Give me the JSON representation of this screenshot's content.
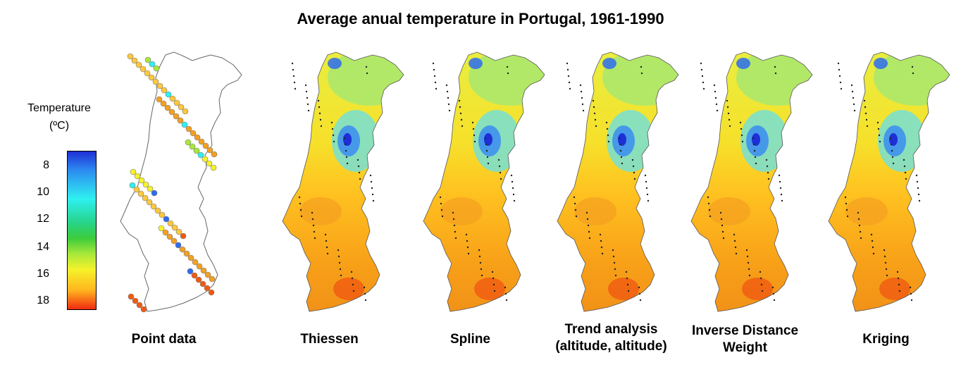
{
  "title": "Average anual temperature in Portugal, 1961-1990",
  "legend": {
    "title_line1": "Temperature",
    "title_line2": "(ºC)",
    "ticks": [
      "8",
      "10",
      "12",
      "14",
      "16",
      "18"
    ],
    "range": [
      7,
      19
    ],
    "colors": [
      "#1f2fd6",
      "#2ef0f0",
      "#3ccc3c",
      "#f6f22a",
      "#ffb41e",
      "#f02a10"
    ]
  },
  "panels": [
    {
      "label": "Point data",
      "label2": ""
    },
    {
      "label": "Thiessen",
      "label2": ""
    },
    {
      "label": "Spline",
      "label2": ""
    },
    {
      "label": "Trend analysis",
      "label2": "(altitude, altitude)"
    },
    {
      "label": "Inverse Distance",
      "label2": "Weight"
    },
    {
      "label": "Kriging",
      "label2": ""
    }
  ]
}
